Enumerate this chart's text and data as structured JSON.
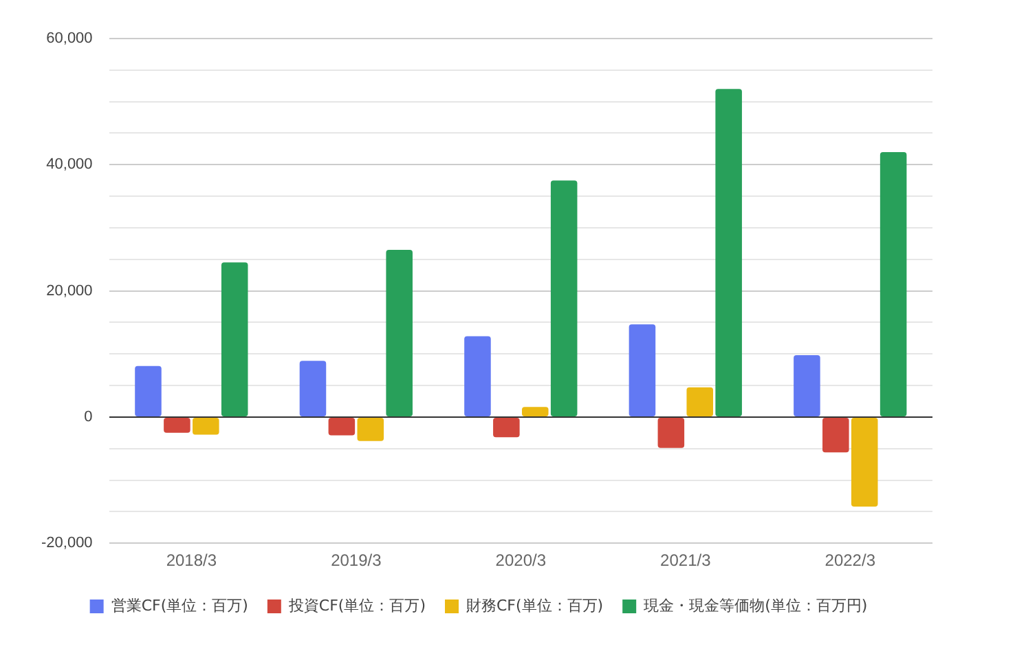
{
  "chart_data": {
    "type": "bar",
    "categories": [
      "2018/3",
      "2019/3",
      "2020/3",
      "2021/3",
      "2022/3"
    ],
    "series": [
      {
        "name": "営業CF(単位：百万)",
        "color": "#6279f3",
        "values": [
          8100,
          8900,
          12800,
          14700,
          9800
        ]
      },
      {
        "name": "投資CF(単位：百万)",
        "color": "#d2473c",
        "values": [
          -2500,
          -2900,
          -3200,
          -4900,
          -5600
        ]
      },
      {
        "name": "財務CF(単位：百万)",
        "color": "#ebb912",
        "values": [
          -2800,
          -3800,
          1600,
          4700,
          -14200
        ]
      },
      {
        "name": "現金・現金等価物(単位：百万円)",
        "color": "#28a05a",
        "values": [
          24500,
          26500,
          37500,
          52000,
          42000
        ]
      }
    ],
    "ylim": [
      -20000,
      60000
    ],
    "yticks": [
      {
        "value": -20000,
        "label": "-20,000"
      },
      {
        "value": -15000,
        "label": null
      },
      {
        "value": -10000,
        "label": null
      },
      {
        "value": -5000,
        "label": null
      },
      0,
      {
        "value": 5000,
        "label": null
      },
      {
        "value": 10000,
        "label": null
      },
      {
        "value": 15000,
        "label": null
      },
      {
        "value": 20000,
        "label": "20,000"
      },
      {
        "value": 25000,
        "label": null
      },
      {
        "value": 30000,
        "label": null
      },
      {
        "value": 35000,
        "label": null
      },
      {
        "value": 40000,
        "label": "40,000"
      },
      {
        "value": 45000,
        "label": null
      },
      {
        "value": 50000,
        "label": null
      },
      {
        "value": 55000,
        "label": null
      },
      {
        "value": 60000,
        "label": "60,000"
      }
    ],
    "grid": "y",
    "legend": "bottom"
  }
}
